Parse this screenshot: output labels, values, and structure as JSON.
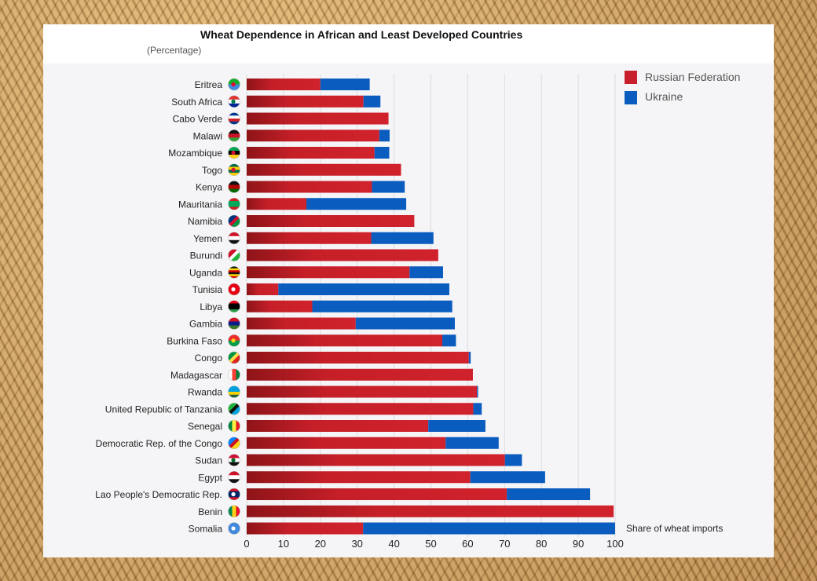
{
  "chart_data": {
    "type": "bar",
    "orientation": "horizontal",
    "stacked": true,
    "title": "Wheat Dependence in African and Least Developed Countries",
    "subtitle": "(Percentage)",
    "xlabel": "Share of wheat imports",
    "xlim": [
      0,
      100
    ],
    "xticks": [
      0,
      10,
      20,
      30,
      40,
      50,
      60,
      70,
      80,
      90,
      100
    ],
    "grid": true,
    "legend_position": "top-right",
    "categories": [
      "Eritrea",
      "South Africa",
      "Cabo Verde",
      "Malawi",
      "Mozambique",
      "Togo",
      "Kenya",
      "Mauritania",
      "Namibia",
      "Yemen",
      "Burundi",
      "Uganda",
      "Tunisia",
      "Libya",
      "Gambia",
      "Burkina Faso",
      "Congo",
      "Madagascar",
      "Rwanda",
      "United Republic of Tanzania",
      "Senegal",
      "Democratic Rep. of the Congo",
      "Sudan",
      "Egypt",
      "Lao People's Democratic Rep.",
      "Benin",
      "Somalia"
    ],
    "series": [
      {
        "name": "Russian Federation",
        "color": "#c8202a",
        "values": [
          20,
          31.7,
          38.5,
          36,
          34.7,
          41.9,
          34,
          16.2,
          45.5,
          33.8,
          52,
          44.2,
          8.6,
          17.8,
          29.6,
          53.1,
          60.3,
          61.4,
          62.5,
          61.5,
          49.3,
          54,
          70.1,
          60.7,
          70.6,
          99.6,
          31.6
        ]
      },
      {
        "name": "Ukraine",
        "color": "#0b5cbf",
        "values": [
          13.4,
          4.6,
          0,
          2.8,
          4,
          0,
          8.9,
          27.1,
          0,
          16.9,
          0,
          9.1,
          46.4,
          38,
          26.9,
          3.7,
          0.5,
          0,
          0.3,
          2.3,
          15.5,
          14.4,
          4.6,
          20.3,
          22.6,
          0,
          68.4
        ]
      }
    ],
    "flags": [
      "flag-eritrea-icon",
      "flag-south-africa-icon",
      "flag-cabo-verde-icon",
      "flag-malawi-icon",
      "flag-mozambique-icon",
      "flag-togo-icon",
      "flag-kenya-icon",
      "flag-mauritania-icon",
      "flag-namibia-icon",
      "flag-yemen-icon",
      "flag-burundi-icon",
      "flag-uganda-icon",
      "flag-tunisia-icon",
      "flag-libya-icon",
      "flag-gambia-icon",
      "flag-burkina-faso-icon",
      "flag-congo-icon",
      "flag-madagascar-icon",
      "flag-rwanda-icon",
      "flag-tanzania-icon",
      "flag-senegal-icon",
      "flag-dr-congo-icon",
      "flag-sudan-icon",
      "flag-egypt-icon",
      "flag-laos-icon",
      "flag-benin-icon",
      "flag-somalia-icon"
    ]
  }
}
